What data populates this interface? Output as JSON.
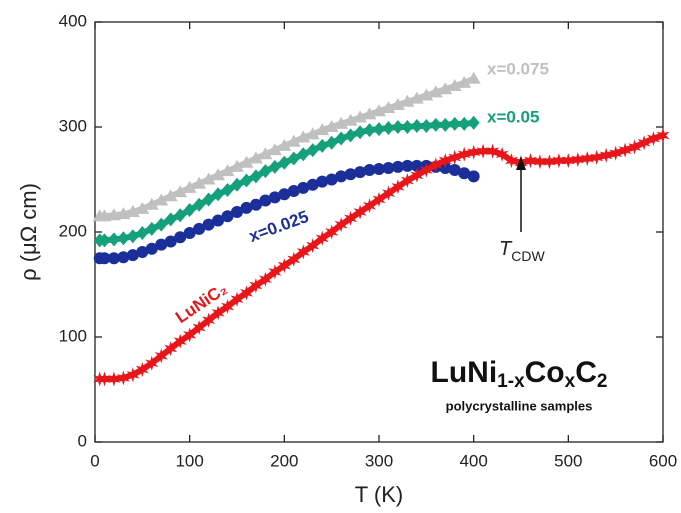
{
  "chart_data": {
    "type": "scatter",
    "title": [
      {
        "text": "LuNi"
      },
      {
        "text": "1-x",
        "sub": true
      },
      {
        "text": "Co"
      },
      {
        "text": "x",
        "sub": true
      },
      {
        "text": "C"
      },
      {
        "text": "2",
        "sub": true
      }
    ],
    "subtitle": "polycrystalline samples",
    "x_label": "T (K)",
    "y_label": "ρ (μΩ cm)",
    "xlim": [
      0,
      600
    ],
    "ylim": [
      0,
      400
    ],
    "xticks": [
      0,
      100,
      200,
      300,
      400,
      500,
      600
    ],
    "yticks": [
      0,
      100,
      200,
      300,
      400
    ],
    "annotations": [
      {
        "text": "T",
        "sub": "CDW",
        "x": 450
      }
    ],
    "series": [
      {
        "name": "x=0.075",
        "color": "#c0c0c0",
        "marker": "triangle",
        "x": [
          5,
          10,
          20,
          30,
          40,
          50,
          60,
          70,
          80,
          90,
          100,
          110,
          120,
          130,
          140,
          150,
          160,
          170,
          180,
          190,
          200,
          210,
          220,
          230,
          240,
          250,
          260,
          270,
          280,
          290,
          300,
          310,
          320,
          330,
          340,
          350,
          360,
          370,
          380,
          390,
          400
        ],
        "values": [
          215,
          215,
          216,
          217,
          219,
          222,
          226,
          230,
          234,
          238,
          242,
          246,
          250,
          254,
          258,
          262,
          266,
          270,
          274,
          278,
          282,
          286,
          290,
          293,
          297,
          300,
          303,
          306,
          309,
          312,
          315,
          318,
          321,
          324,
          327,
          330,
          333,
          336,
          339,
          342,
          346
        ]
      },
      {
        "name": "x=0.05",
        "color": "#14a07a",
        "marker": "diamond",
        "x": [
          5,
          10,
          20,
          30,
          40,
          50,
          60,
          70,
          80,
          90,
          100,
          110,
          120,
          130,
          140,
          150,
          160,
          170,
          180,
          190,
          200,
          210,
          220,
          230,
          240,
          250,
          260,
          270,
          280,
          290,
          300,
          310,
          320,
          330,
          340,
          350,
          360,
          370,
          380,
          390,
          400
        ],
        "values": [
          192,
          192,
          193,
          194,
          196,
          199,
          203,
          207,
          212,
          216,
          221,
          226,
          231,
          236,
          240,
          245,
          249,
          253,
          258,
          262,
          266,
          270,
          274,
          278,
          282,
          285,
          289,
          292,
          295,
          297,
          298,
          299,
          300,
          300,
          301,
          301,
          302,
          302,
          303,
          303,
          304
        ]
      },
      {
        "name": "x=0.025",
        "color": "#1a2f9a",
        "marker": "circle",
        "x": [
          5,
          10,
          20,
          30,
          40,
          50,
          60,
          70,
          80,
          90,
          100,
          110,
          120,
          130,
          140,
          150,
          160,
          170,
          180,
          190,
          200,
          210,
          220,
          230,
          240,
          250,
          260,
          270,
          280,
          290,
          300,
          310,
          320,
          330,
          340,
          350,
          360,
          370,
          380,
          390,
          400
        ],
        "values": [
          175,
          175,
          175,
          176,
          178,
          181,
          184,
          188,
          191,
          195,
          199,
          203,
          207,
          211,
          215,
          219,
          223,
          226,
          230,
          233,
          236,
          239,
          242,
          245,
          248,
          250,
          253,
          255,
          257,
          259,
          260,
          261,
          262,
          263,
          263,
          263,
          262,
          261,
          259,
          256,
          253
        ]
      },
      {
        "name": "LuNiC₂",
        "color": "#e8161b",
        "marker": "star",
        "x": [
          5,
          10,
          20,
          30,
          40,
          50,
          60,
          70,
          80,
          90,
          100,
          110,
          120,
          130,
          140,
          150,
          160,
          170,
          180,
          190,
          200,
          210,
          220,
          230,
          240,
          250,
          260,
          270,
          280,
          290,
          300,
          310,
          320,
          330,
          340,
          350,
          360,
          370,
          380,
          390,
          400,
          410,
          420,
          430,
          440,
          450,
          460,
          470,
          480,
          490,
          500,
          510,
          520,
          530,
          540,
          550,
          560,
          570,
          580,
          590,
          600
        ],
        "values": [
          60,
          60,
          60,
          61,
          64,
          69,
          75,
          82,
          89,
          96,
          102,
          109,
          116,
          123,
          129,
          136,
          142,
          149,
          155,
          162,
          168,
          174,
          181,
          187,
          194,
          200,
          207,
          213,
          219,
          225,
          231,
          237,
          243,
          249,
          254,
          259,
          264,
          268,
          271,
          274,
          276,
          277,
          277,
          274,
          268,
          266,
          268,
          267,
          267,
          268,
          268,
          269,
          270,
          271,
          273,
          275,
          278,
          281,
          285,
          289,
          292
        ]
      }
    ]
  }
}
